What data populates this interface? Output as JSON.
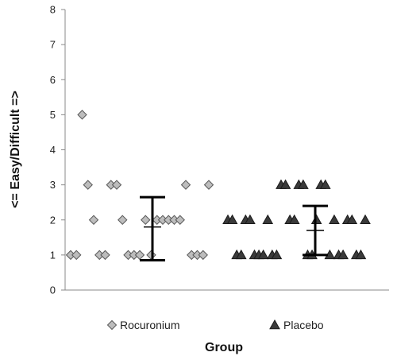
{
  "chart_data": {
    "type": "scatter",
    "xlabel": "Group",
    "ylabel": "<= Easy/Difficult =>",
    "ylim": [
      0,
      8
    ],
    "yticks": [
      0,
      1,
      2,
      3,
      4,
      5,
      6,
      7,
      8
    ],
    "grid": false,
    "legend_position": "bottom",
    "series": [
      {
        "name": "Rocuronium",
        "marker": "diamond",
        "color": "#bdbdbd",
        "stroke": "#5a5a5a",
        "values": [
          1,
          1,
          5,
          3,
          2,
          1,
          1,
          3,
          3,
          2,
          1,
          1,
          1,
          2,
          1,
          2,
          2,
          2,
          2,
          2,
          3,
          1,
          1,
          1,
          3
        ],
        "mean": 1.8,
        "error_low": 0.85,
        "error_high": 2.65,
        "error_color": "#000000"
      },
      {
        "name": "Placebo",
        "marker": "triangle",
        "color": "#3a3a3a",
        "stroke": "#1a1a1a",
        "values": [
          2,
          2,
          1,
          1,
          2,
          2,
          1,
          1,
          1,
          2,
          1,
          1,
          3,
          3,
          2,
          2,
          3,
          3,
          1,
          1,
          2,
          3,
          3,
          1,
          2,
          1,
          1,
          2,
          2,
          1,
          1,
          2
        ],
        "mean": 1.7,
        "error_low": 1.0,
        "error_high": 2.4,
        "error_color": "#000000"
      }
    ]
  }
}
